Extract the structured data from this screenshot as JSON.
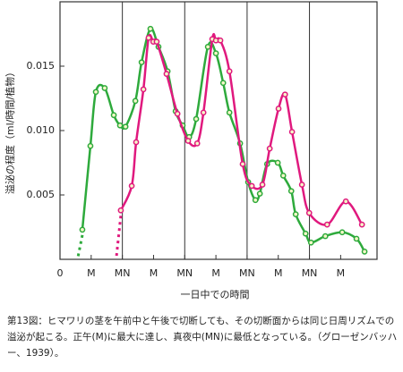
{
  "chart_data": {
    "type": "line",
    "ylabel": "溢泌の程度（ml/時間/植物）",
    "xlabel": "一日中での時間",
    "xlim": [
      0,
      122
    ],
    "xticks": [
      0,
      {
        "value": 12,
        "label": "M"
      },
      {
        "value": 24,
        "label": "MN"
      },
      {
        "value": 36,
        "label": "M"
      },
      {
        "value": 48,
        "label": "MN"
      },
      {
        "value": 60,
        "label": "M"
      },
      {
        "value": 72,
        "label": "MN"
      },
      {
        "value": 84,
        "label": "M"
      },
      {
        "value": 96,
        "label": "MN"
      },
      {
        "value": 108,
        "label": "M"
      }
    ],
    "ylim": [
      0,
      0.02
    ],
    "yticks": [
      0.005,
      {
        "value": 0.01,
        "label": "0.010"
      },
      0.015
    ],
    "grid_x": [
      24,
      48,
      72,
      96
    ],
    "series": [
      {
        "color": "#2eaa3c",
        "x": [
          8.6,
          11.7,
          13.8,
          17.2,
          20.7,
          23.1,
          25.2,
          29.0,
          31.4,
          34.8,
          37.9,
          41.4,
          44.5,
          47.2,
          49.7,
          52.4,
          56.9,
          60.0,
          62.8,
          65.2,
          69.3,
          72.4,
          75.2,
          76.9,
          79.7,
          83.8,
          85.9,
          89.0,
          90.7,
          94.5,
          96.6,
          102.1,
          108.6,
          114.1,
          117.2
        ],
        "values": [
          0.0023,
          0.0088,
          0.013,
          0.0133,
          0.0112,
          0.0104,
          0.0103,
          0.0123,
          0.0153,
          0.0179,
          0.0165,
          0.0146,
          0.0115,
          0.0104,
          0.0095,
          0.0109,
          0.0165,
          0.016,
          0.0137,
          0.0114,
          0.009,
          0.006,
          0.0046,
          0.0051,
          0.0074,
          0.0075,
          0.0065,
          0.0053,
          0.0035,
          0.002,
          0.0013,
          0.0018,
          0.0021,
          0.0016,
          0.0006
        ]
      },
      {
        "color": "#e0197e",
        "x": [
          23.4,
          27.6,
          29.3,
          32.1,
          34.1,
          35.9,
          37.2,
          41.0,
          45.2,
          49.3,
          52.8,
          55.2,
          58.6,
          60.0,
          61.7,
          65.2,
          70.3,
          73.8,
          77.9,
          80.7,
          84.1,
          86.6,
          89.3,
          93.1,
          95.9,
          102.8,
          110.0,
          116.2
        ],
        "values": [
          0.0038,
          0.0057,
          0.0091,
          0.0132,
          0.0172,
          0.0169,
          0.0169,
          0.0144,
          0.0113,
          0.0092,
          0.009,
          0.0114,
          0.0171,
          0.017,
          0.017,
          0.0146,
          0.0074,
          0.0057,
          0.0058,
          0.0086,
          0.0117,
          0.0128,
          0.0099,
          0.0058,
          0.0036,
          0.0027,
          0.0045,
          0.0027
        ]
      }
    ]
  },
  "caption": "第13図：ヒマワリの茎を午前中と午後で切断しても、その切断面からは同じ日周リズムでの溢泌が起こる。正午(M)に最大に達し、真夜中(MN)に最低となっている。（グローゼンバッハー、1939）。"
}
